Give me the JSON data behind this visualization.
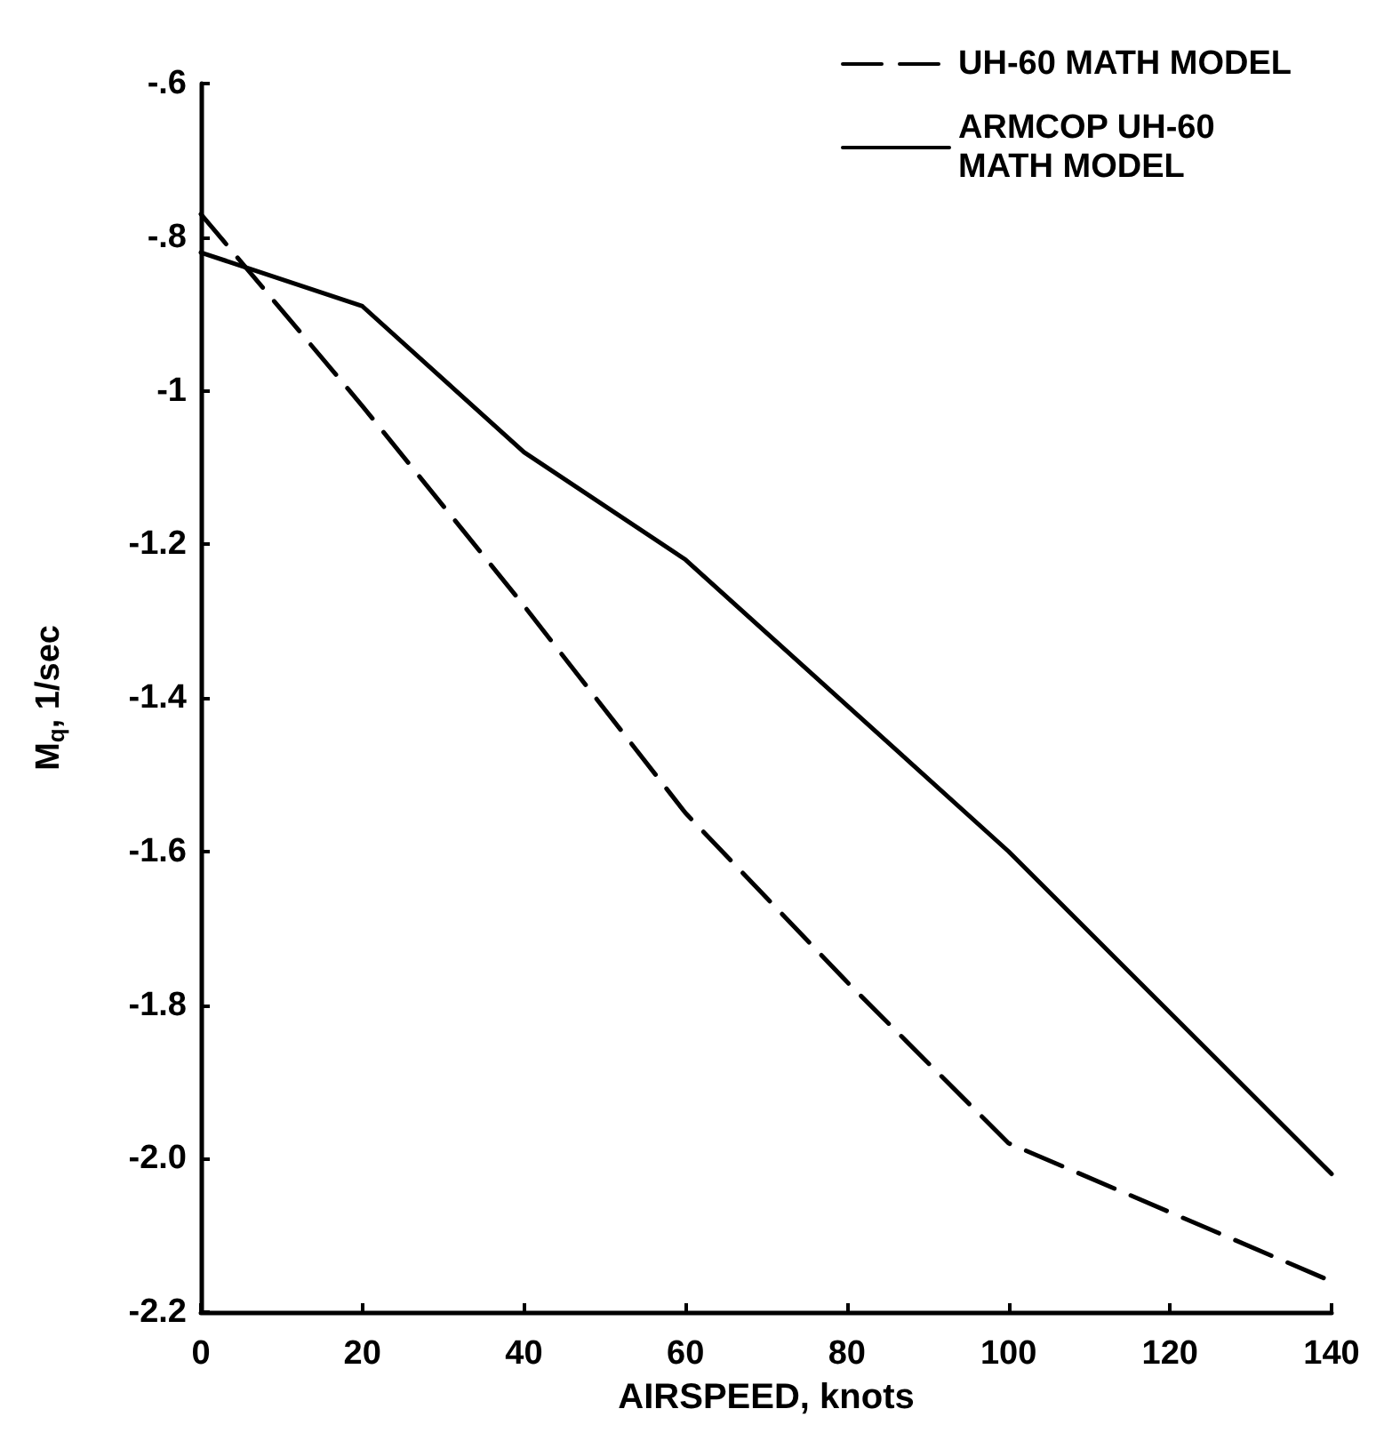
{
  "chart_data": {
    "type": "line",
    "xlabel": "AIRSPEED, knots",
    "ylabel": "M$_{q}$, 1/sec",
    "xlim": [
      0,
      140
    ],
    "xticks": [
      0,
      20,
      40,
      60,
      80,
      100,
      120,
      140
    ],
    "ylim": [
      -2.2,
      -0.6
    ],
    "yticks": [
      {
        "value": -0.6,
        "label": "-.6"
      },
      {
        "value": -0.8,
        "label": "-.8"
      },
      {
        "value": -1,
        "label": "-1"
      },
      {
        "value": -1.2,
        "label": "-1.2"
      },
      {
        "value": -1.4,
        "label": "-1.4"
      },
      {
        "value": -1.6,
        "label": "-1.6"
      },
      {
        "value": -1.8,
        "label": "-1.8"
      },
      {
        "value": -2,
        "label": "-2.0"
      },
      {
        "value": -2.2,
        "label": "-2.2"
      }
    ],
    "grid": false,
    "legend": "top right",
    "marker": "none",
    "series": [
      {
        "name": "UH-60 MATH MODEL",
        "color": "#000000",
        "line_style": "dashed",
        "x": [
          0,
          20,
          40,
          60,
          80,
          100,
          140
        ],
        "values": [
          -0.77,
          -1.02,
          -1.28,
          -1.55,
          -1.77,
          -1.98,
          -2.16
        ]
      },
      {
        "name": "ARMCOP UH-60 MATH MODEL",
        "color": "#000000",
        "line_style": "solid",
        "x": [
          0,
          20,
          40,
          60,
          100,
          140
        ],
        "values": [
          -0.82,
          -0.89,
          -1.08,
          -1.22,
          -1.6,
          -2.02
        ]
      }
    ]
  }
}
